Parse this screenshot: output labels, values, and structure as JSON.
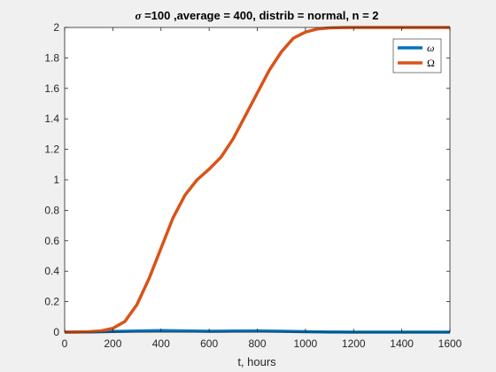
{
  "chart_data": {
    "type": "line",
    "title_symbol": "σ",
    "title_rest": " =100 ,average = 400, distrib = normal, n = 2",
    "xlabel": "t, hours",
    "ylabel": "",
    "xlim": [
      0,
      1600
    ],
    "ylim": [
      0,
      2
    ],
    "xticks": [
      0,
      200,
      400,
      600,
      800,
      1000,
      1200,
      1400,
      1600
    ],
    "yticks": [
      0,
      0.2,
      0.4,
      0.6,
      0.8,
      1,
      1.2,
      1.4,
      1.6,
      1.8,
      2
    ],
    "xtick_labels": [
      "0",
      "200",
      "400",
      "600",
      "800",
      "1000",
      "1200",
      "1400",
      "1600"
    ],
    "ytick_labels": [
      "0",
      "0.2",
      "0.4",
      "0.6",
      "0.8",
      "1",
      "1.2",
      "1.4",
      "1.6",
      "1.8",
      "2"
    ],
    "grid": false,
    "legend_position": "top-right",
    "series": [
      {
        "name": "ω",
        "color": "#0072BD",
        "x": [
          0,
          100,
          200,
          300,
          400,
          500,
          600,
          700,
          800,
          900,
          1000,
          1100,
          1200,
          1300,
          1400,
          1500,
          1600
        ],
        "y": [
          0,
          0.001,
          0.004,
          0.007,
          0.01,
          0.008,
          0.006,
          0.007,
          0.008,
          0.006,
          0.003,
          0.001,
          0,
          0,
          0,
          0,
          0
        ]
      },
      {
        "name": "Ω",
        "color": "#D95319",
        "x": [
          0,
          50,
          100,
          150,
          200,
          250,
          300,
          350,
          400,
          450,
          500,
          550,
          600,
          650,
          700,
          750,
          800,
          850,
          900,
          950,
          1000,
          1050,
          1100,
          1150,
          1200,
          1300,
          1400,
          1500,
          1600
        ],
        "y": [
          0,
          0.001,
          0.003,
          0.008,
          0.025,
          0.07,
          0.18,
          0.35,
          0.55,
          0.75,
          0.9,
          1.0,
          1.07,
          1.15,
          1.27,
          1.42,
          1.57,
          1.72,
          1.84,
          1.93,
          1.97,
          1.99,
          1.997,
          1.999,
          2.0,
          2.0,
          2.0,
          2.0,
          2.0
        ]
      }
    ]
  }
}
